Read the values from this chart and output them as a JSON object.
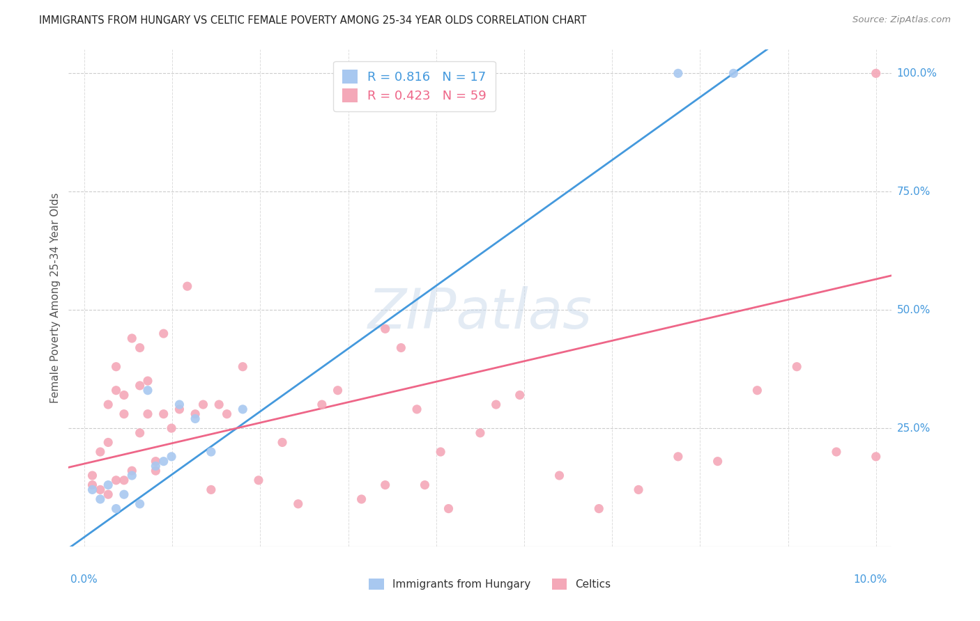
{
  "title": "IMMIGRANTS FROM HUNGARY VS CELTIC FEMALE POVERTY AMONG 25-34 YEAR OLDS CORRELATION CHART",
  "source": "Source: ZipAtlas.com",
  "ylabel": "Female Poverty Among 25-34 Year Olds",
  "right_yticklabels": [
    "25.0%",
    "50.0%",
    "75.0%",
    "100.0%"
  ],
  "right_ytick_vals": [
    0.25,
    0.5,
    0.75,
    1.0
  ],
  "blue_R": 0.816,
  "blue_N": 17,
  "pink_R": 0.423,
  "pink_N": 59,
  "blue_color": "#a8c8f0",
  "pink_color": "#f4a8b8",
  "blue_line_color": "#4499dd",
  "pink_line_color": "#ee6688",
  "legend_blue_label": "Immigrants from Hungary",
  "legend_pink_label": "Celtics",
  "watermark": "ZIPatlas",
  "blue_scatter_x": [
    0.001,
    0.002,
    0.003,
    0.004,
    0.005,
    0.006,
    0.007,
    0.008,
    0.009,
    0.01,
    0.011,
    0.012,
    0.014,
    0.016,
    0.02,
    0.075,
    0.082
  ],
  "blue_scatter_y": [
    0.12,
    0.1,
    0.13,
    0.08,
    0.11,
    0.15,
    0.09,
    0.33,
    0.17,
    0.18,
    0.19,
    0.3,
    0.27,
    0.2,
    0.29,
    1.0,
    1.0
  ],
  "pink_scatter_x": [
    0.001,
    0.001,
    0.002,
    0.002,
    0.003,
    0.003,
    0.003,
    0.004,
    0.004,
    0.004,
    0.005,
    0.005,
    0.005,
    0.006,
    0.006,
    0.007,
    0.007,
    0.007,
    0.008,
    0.008,
    0.009,
    0.009,
    0.01,
    0.01,
    0.011,
    0.012,
    0.013,
    0.014,
    0.015,
    0.016,
    0.017,
    0.018,
    0.02,
    0.022,
    0.025,
    0.027,
    0.03,
    0.032,
    0.035,
    0.038,
    0.04,
    0.042,
    0.045,
    0.05,
    0.052,
    0.055,
    0.06,
    0.065,
    0.07,
    0.075,
    0.08,
    0.085,
    0.09,
    0.095,
    0.1,
    0.038,
    0.043,
    0.046,
    0.1
  ],
  "pink_scatter_y": [
    0.13,
    0.15,
    0.12,
    0.2,
    0.11,
    0.22,
    0.3,
    0.14,
    0.33,
    0.38,
    0.14,
    0.28,
    0.32,
    0.16,
    0.44,
    0.24,
    0.34,
    0.42,
    0.28,
    0.35,
    0.16,
    0.18,
    0.28,
    0.45,
    0.25,
    0.29,
    0.55,
    0.28,
    0.3,
    0.12,
    0.3,
    0.28,
    0.38,
    0.14,
    0.22,
    0.09,
    0.3,
    0.33,
    0.1,
    0.13,
    0.42,
    0.29,
    0.2,
    0.24,
    0.3,
    0.32,
    0.15,
    0.08,
    0.12,
    0.19,
    0.18,
    0.33,
    0.38,
    0.2,
    1.0,
    0.46,
    0.13,
    0.08,
    0.19
  ],
  "blue_line_x0": 0.0,
  "blue_line_y0": 0.02,
  "blue_line_x1": 0.082,
  "blue_line_y1": 1.0,
  "pink_line_x0": 0.0,
  "pink_line_y0": 0.175,
  "pink_line_x1": 0.1,
  "pink_line_y1": 0.565,
  "xlim_min": -0.002,
  "xlim_max": 0.102,
  "ylim_min": 0.0,
  "ylim_max": 1.05
}
